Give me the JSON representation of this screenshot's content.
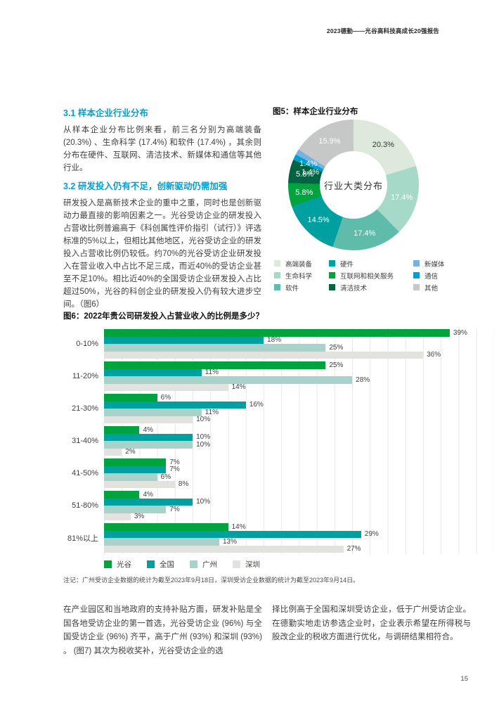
{
  "header": {
    "title": "2023德勤——光谷高科技高成长20强报告"
  },
  "sections": [
    {
      "heading": "3.1 样本企业行业分布",
      "body": "从样本企业分布比例来看，前三名分别为高端装备 (20.3%) 、生命科学 (17.4%) 和软件 (17.4%) ，其余则分布在硬件、互联网、清洁技术、新媒体和通信等其他行业。"
    },
    {
      "heading": "3.2 研发投入仍有不足，创新驱动仍需加强",
      "body": "研发投入是高新技术企业的重中之重，同时也是创新驱动力最直接的影响因素之一。光谷受访企业的研发投入占营收比例普遍高于《科创属性评价指引（试行）》评选标准的5%以上，但相比其他地区，光谷受访企业的研发投入占营收比例仍较低。约70%的光谷受访企业研发投入在营业收入中占比不足三成，而近40%的受访企业甚至不足10%。相比近40%的全国受访企业研发投入占比超过50%，光谷的科创企业的研发投入仍有较大进步空间。（图6）"
    }
  ],
  "note": "注记：广州受访企业数据的统计为截至2023年9月18日，深圳受访企业数据的统计为截至2023年9月14日。",
  "paragraphs": {
    "left": "在产业园区和当地政府的支持补贴方面，研发补贴是全国各地受访企业的第一首选，光谷受访企业 (96%) 与全国受访企业 (96%) 齐平，高于广州 (93%) 和深圳 (93%) 。 (图7) 其次为税收奖补，光谷受访企业的选",
    "right": "择比例高于全国和深圳受访企业，低于广州受访企业。在德勤实地走访参选企业时，企业表示希望在所得税与股改企业的税收方面进行优化，与调研结果相符合。"
  },
  "page_number": "15",
  "chart_data": [
    {
      "type": "pie",
      "title": "图5：样本企业行业分布",
      "donut": true,
      "center_label": "行业大类分布",
      "segments": [
        {
          "label": "高端装备",
          "value": 20.3,
          "color": "#dce9dc",
          "label_color": "#333333"
        },
        {
          "label": "生命科学",
          "value": 17.4,
          "color": "#a6d9c8",
          "label_color": "#ffffff"
        },
        {
          "label": "软件",
          "value": 17.4,
          "color": "#5fbcab",
          "label_color": "#ffffff"
        },
        {
          "label": "硬件",
          "value": 14.5,
          "color": "#00a0a0",
          "label_color": "#ffffff"
        },
        {
          "label": "互联网和相关服务",
          "value": 5.8,
          "color": "#00a43e",
          "label_color": "#ffffff"
        },
        {
          "label": "清洁技术",
          "value": 5.8,
          "color": "#006341",
          "label_color": "#ffffff"
        },
        {
          "label": "通信",
          "value": 1.4,
          "color": "#00a0d2",
          "label_color": "#ffffff"
        },
        {
          "label": "新媒体",
          "value": 1.4,
          "color": "#77b2e1",
          "label_color": "#ffffff"
        },
        {
          "label": "其他",
          "value": 15.9,
          "color": "#c6c7c7",
          "label_color": "#ffffff"
        }
      ],
      "legend_order": [
        "高端装备",
        "生命科学",
        "软件",
        "硬件",
        "互联网和相关服务",
        "清洁技术",
        "新媒体",
        "通信",
        "其他"
      ],
      "legend_position": "bottom"
    },
    {
      "type": "bar",
      "title": "图6：2022年贵公司研发投入占营业收入的比例是多少？",
      "orientation": "horizontal",
      "categories": [
        "0-10%",
        "11-20%",
        "21-30%",
        "31-40%",
        "41-50%",
        "51-80%",
        "81%以上"
      ],
      "series": [
        {
          "name": "光谷",
          "color": "#00a33d",
          "values": [
            39,
            25,
            6,
            4,
            7,
            4,
            14
          ]
        },
        {
          "name": "全国",
          "color": "#00a0a0",
          "values": [
            18,
            11,
            16,
            10,
            7,
            10,
            29
          ]
        },
        {
          "name": "广州",
          "color": "#a9d2ca",
          "values": [
            25,
            28,
            11,
            10,
            6,
            7,
            13
          ]
        },
        {
          "name": "深圳",
          "color": "#e2e2df",
          "values": [
            36,
            14,
            10,
            2,
            8,
            3,
            27
          ]
        }
      ],
      "unit": "%",
      "xlim": [
        0,
        44
      ],
      "gridline_step": 2,
      "grid": true,
      "legend_position": "bottom"
    }
  ]
}
